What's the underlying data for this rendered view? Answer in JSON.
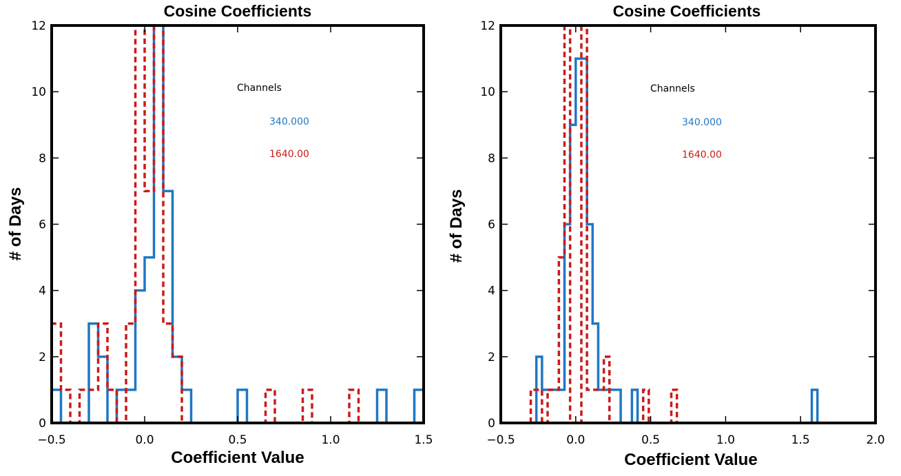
{
  "chart_data": [
    {
      "type": "histogram",
      "title": "Cosine Coefficients",
      "xlabel": "Coefficient Value",
      "ylabel": "# of Days",
      "xlim": [
        -0.5,
        1.5
      ],
      "ylim": [
        0,
        12
      ],
      "x_ticks": [
        "−0.5",
        "0.0",
        "0.5",
        "1.0",
        "1.5"
      ],
      "y_ticks": [
        "0",
        "2",
        "4",
        "6",
        "8",
        "10",
        "12"
      ],
      "legend_title": "Channels",
      "legend_placement": "top-right",
      "grid": false,
      "series": [
        {
          "name": "340.000",
          "color": "#1f77c4",
          "style": "solid",
          "bin_width": 0.05,
          "bins": [
            [
              -0.5,
              1
            ],
            [
              -0.45,
              0
            ],
            [
              -0.4,
              0
            ],
            [
              -0.35,
              0
            ],
            [
              -0.3,
              3
            ],
            [
              -0.25,
              2
            ],
            [
              -0.2,
              0
            ],
            [
              -0.15,
              1
            ],
            [
              -0.1,
              1
            ],
            [
              -0.05,
              4
            ],
            [
              0.0,
              5
            ],
            [
              0.05,
              13
            ],
            [
              0.1,
              7
            ],
            [
              0.15,
              2
            ],
            [
              0.2,
              1
            ],
            [
              0.25,
              0
            ],
            [
              0.3,
              0
            ],
            [
              0.35,
              0
            ],
            [
              0.4,
              0
            ],
            [
              0.45,
              0
            ],
            [
              0.5,
              1
            ],
            [
              0.55,
              0
            ],
            [
              0.6,
              0
            ],
            [
              0.65,
              0
            ],
            [
              0.7,
              0
            ],
            [
              0.75,
              0
            ],
            [
              0.8,
              0
            ],
            [
              0.85,
              0
            ],
            [
              0.9,
              0
            ],
            [
              0.95,
              0
            ],
            [
              1.0,
              0
            ],
            [
              1.05,
              0
            ],
            [
              1.1,
              0
            ],
            [
              1.15,
              0
            ],
            [
              1.2,
              0
            ],
            [
              1.25,
              1
            ],
            [
              1.3,
              0
            ],
            [
              1.35,
              0
            ],
            [
              1.4,
              0
            ],
            [
              1.45,
              1
            ]
          ]
        },
        {
          "name": "1640.00",
          "color": "#cc1a1a",
          "style": "dashed",
          "bin_width": 0.05,
          "bins": [
            [
              -0.5,
              3
            ],
            [
              -0.45,
              1
            ],
            [
              -0.4,
              0
            ],
            [
              -0.35,
              1
            ],
            [
              -0.3,
              1
            ],
            [
              -0.25,
              3
            ],
            [
              -0.2,
              1
            ],
            [
              -0.15,
              0
            ],
            [
              -0.1,
              3
            ],
            [
              -0.05,
              13
            ],
            [
              0.0,
              7
            ],
            [
              0.05,
              14
            ],
            [
              0.1,
              3
            ],
            [
              0.15,
              2
            ],
            [
              0.2,
              0
            ],
            [
              0.25,
              0
            ],
            [
              0.3,
              0
            ],
            [
              0.35,
              0
            ],
            [
              0.4,
              0
            ],
            [
              0.45,
              0
            ],
            [
              0.5,
              0
            ],
            [
              0.55,
              0
            ],
            [
              0.6,
              0
            ],
            [
              0.65,
              1
            ],
            [
              0.7,
              0
            ],
            [
              0.75,
              0
            ],
            [
              0.8,
              0
            ],
            [
              0.85,
              1
            ],
            [
              0.9,
              0
            ],
            [
              0.95,
              0
            ],
            [
              1.0,
              0
            ],
            [
              1.05,
              0
            ],
            [
              1.1,
              1
            ],
            [
              1.15,
              0
            ],
            [
              1.2,
              0
            ],
            [
              1.25,
              0
            ],
            [
              1.3,
              0
            ],
            [
              1.35,
              0
            ],
            [
              1.4,
              0
            ],
            [
              1.45,
              0
            ]
          ]
        }
      ]
    },
    {
      "type": "histogram",
      "title": "Cosine Coefficients",
      "xlabel": "Coefficient Value",
      "ylabel": "# of Days",
      "xlim": [
        -0.5,
        2.0
      ],
      "ylim": [
        0,
        12
      ],
      "x_ticks": [
        "−0.5",
        "0.0",
        "0.5",
        "1.0",
        "1.5",
        "2.0"
      ],
      "y_ticks": [
        "0",
        "2",
        "4",
        "6",
        "8",
        "10",
        "12"
      ],
      "legend_title": "Channels",
      "legend_placement": "top-right",
      "grid": false,
      "series": [
        {
          "name": "340.000",
          "color": "#1f77c4",
          "style": "solid",
          "bin_width": 0.0375,
          "bins": [
            [
              -0.3,
              0
            ],
            [
              -0.2625,
              2
            ],
            [
              -0.225,
              1
            ],
            [
              -0.1875,
              1
            ],
            [
              -0.15,
              1
            ],
            [
              -0.1125,
              1
            ],
            [
              -0.075,
              6
            ],
            [
              -0.0375,
              9
            ],
            [
              0.0,
              11
            ],
            [
              0.0375,
              11
            ],
            [
              0.075,
              6
            ],
            [
              0.1125,
              3
            ],
            [
              0.15,
              1
            ],
            [
              0.1875,
              1
            ],
            [
              0.225,
              1
            ],
            [
              0.2625,
              1
            ],
            [
              0.3,
              0
            ],
            [
              0.3375,
              0
            ],
            [
              0.375,
              1
            ],
            [
              0.4125,
              0
            ],
            [
              1.575,
              1
            ]
          ]
        },
        {
          "name": "1640.00",
          "color": "#cc1a1a",
          "style": "dashed",
          "bin_width": 0.0375,
          "bins": [
            [
              -0.3,
              1
            ],
            [
              -0.2625,
              1
            ],
            [
              -0.225,
              0
            ],
            [
              -0.1875,
              1
            ],
            [
              -0.15,
              1
            ],
            [
              -0.1125,
              5
            ],
            [
              -0.075,
              13
            ],
            [
              -0.0375,
              0
            ],
            [
              0.0,
              0
            ],
            [
              0.0375,
              13
            ],
            [
              0.075,
              1
            ],
            [
              0.1125,
              1
            ],
            [
              0.15,
              1
            ],
            [
              0.1875,
              2
            ],
            [
              0.225,
              0
            ],
            [
              0.2625,
              0
            ],
            [
              0.3,
              0
            ],
            [
              0.3375,
              0
            ],
            [
              0.375,
              0
            ],
            [
              0.4125,
              0
            ],
            [
              0.45,
              1
            ],
            [
              0.4875,
              0
            ],
            [
              0.525,
              0
            ],
            [
              0.5625,
              0
            ],
            [
              0.6,
              0
            ],
            [
              0.6375,
              1
            ],
            [
              0.675,
              0
            ]
          ]
        }
      ]
    }
  ]
}
